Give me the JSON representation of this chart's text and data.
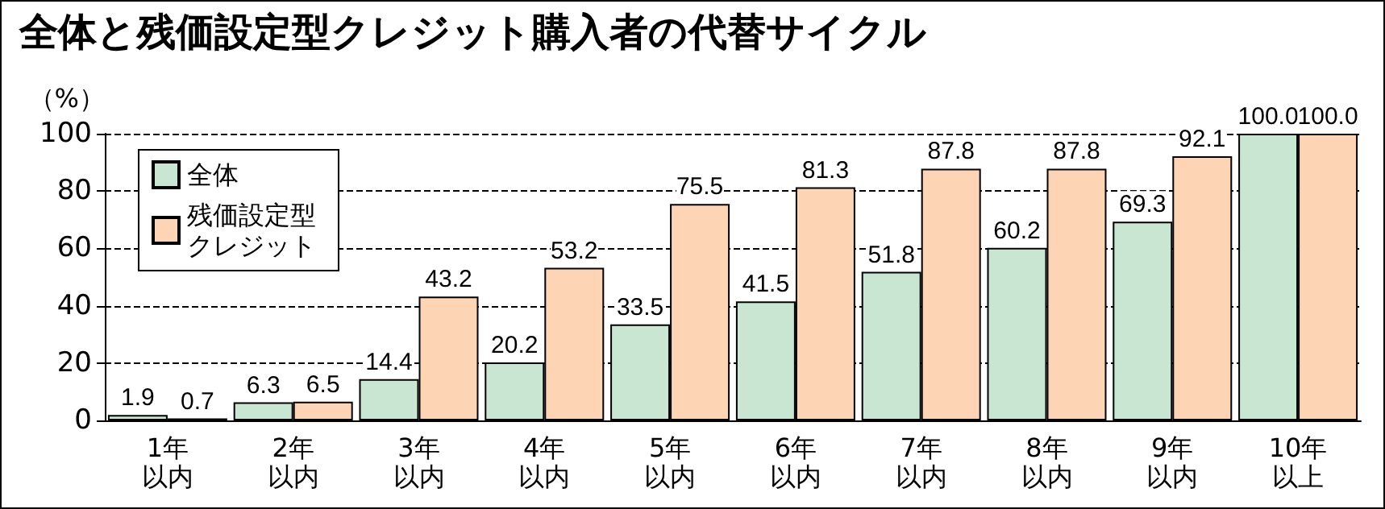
{
  "chart_data": {
    "type": "bar",
    "title": "全体と残価設定型クレジット購入者の代替サイクル",
    "ylabel": "（%）",
    "categories": [
      "1年以内",
      "2年以内",
      "3年以内",
      "4年以内",
      "5年以内",
      "6年以内",
      "7年以内",
      "8年以内",
      "9年以内",
      "10年以上"
    ],
    "series": [
      {
        "name": "全体",
        "color": "#c9e6d2",
        "values": [
          1.9,
          6.3,
          14.4,
          20.2,
          33.5,
          41.5,
          51.8,
          60.2,
          69.3,
          100.0
        ],
        "value_labels": [
          "1.9",
          "6.3",
          "14.4",
          "20.2",
          "33.5",
          "41.5",
          "51.8",
          "60.2",
          "69.3",
          "100.0"
        ]
      },
      {
        "name": "残価設定型クレジット",
        "color": "#fdd5b4",
        "values": [
          0.7,
          6.5,
          43.2,
          53.2,
          75.5,
          81.3,
          87.8,
          87.8,
          92.1,
          100.0
        ],
        "value_labels": [
          "0.7",
          "6.5",
          "43.2",
          "53.2",
          "75.5",
          "81.3",
          "87.8",
          "87.8",
          "92.1",
          "100.0"
        ]
      }
    ],
    "ylim": [
      0,
      100
    ],
    "yticks": [
      0,
      20,
      40,
      60,
      80,
      100
    ],
    "grid": "y",
    "legend": "top left"
  }
}
